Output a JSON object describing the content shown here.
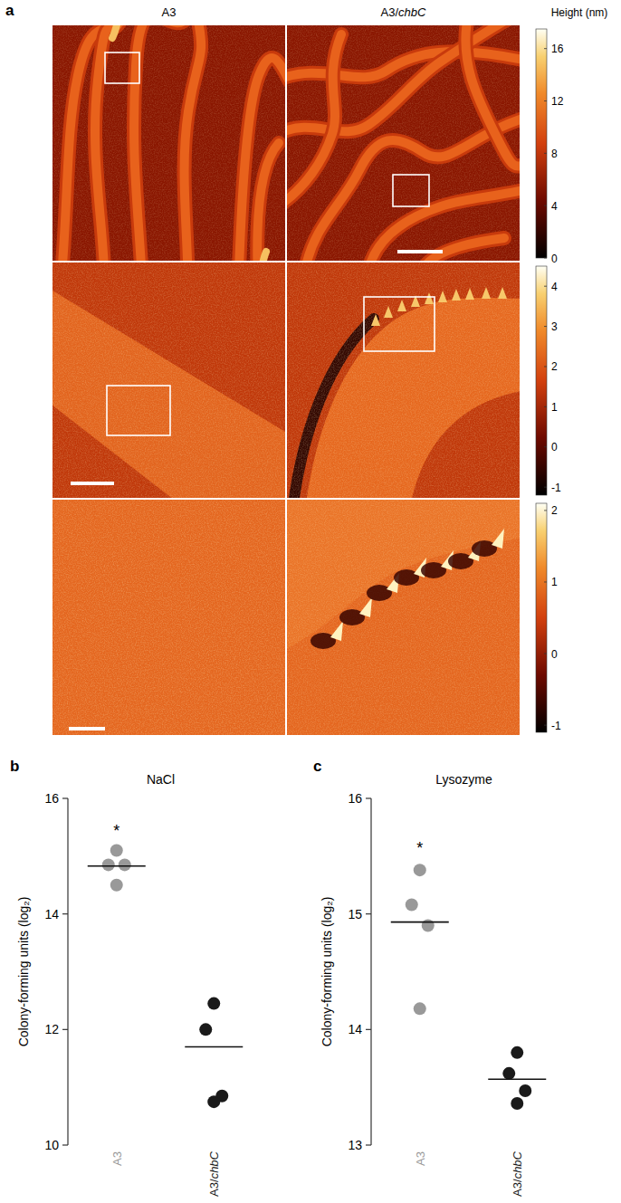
{
  "panel_a": {
    "label": "a",
    "columns": [
      "A3",
      "A3/chbC"
    ],
    "colorbar_title": "Height (nm)",
    "colorbars": [
      {
        "range": [
          0,
          17.5
        ],
        "ticks": [
          0,
          4,
          8,
          12,
          16
        ]
      },
      {
        "range": [
          -1.2,
          4.5
        ],
        "ticks": [
          -1,
          0,
          1,
          2,
          3,
          4
        ]
      },
      {
        "range": [
          -1.1,
          2.1
        ],
        "ticks": [
          -1,
          0,
          1,
          2
        ]
      }
    ]
  },
  "chart_data": [
    {
      "label": "b",
      "type": "scatter",
      "title": "NaCl",
      "y_label": "Colony-forming units (log₂)",
      "categories": [
        "A3",
        "A3/chbC"
      ],
      "values": [
        [
          15.1,
          14.85,
          14.85,
          14.5
        ],
        [
          12.45,
          12.0,
          10.85,
          10.75
        ]
      ],
      "means": [
        14.83,
        11.7
      ],
      "colors": [
        "#999999",
        "#1a1a1a"
      ],
      "ylim": [
        10,
        16
      ],
      "yticks": [
        10,
        12,
        14,
        16
      ],
      "annotations": [
        {
          "text": "*",
          "category": 0,
          "y": 15.5
        }
      ]
    },
    {
      "label": "c",
      "type": "scatter",
      "title": "Lysozyme",
      "y_label": "Colony-forming units (log₂)",
      "categories": [
        "A3",
        "A3/chbC"
      ],
      "values": [
        [
          15.38,
          15.08,
          14.9,
          14.18
        ],
        [
          13.8,
          13.62,
          13.47,
          13.36
        ]
      ],
      "means": [
        14.93,
        13.57
      ],
      "colors": [
        "#999999",
        "#1a1a1a"
      ],
      "ylim": [
        13,
        16
      ],
      "yticks": [
        13,
        14,
        15,
        16
      ],
      "annotations": [
        {
          "text": "*",
          "category": 0,
          "y": 15.6
        }
      ]
    }
  ]
}
